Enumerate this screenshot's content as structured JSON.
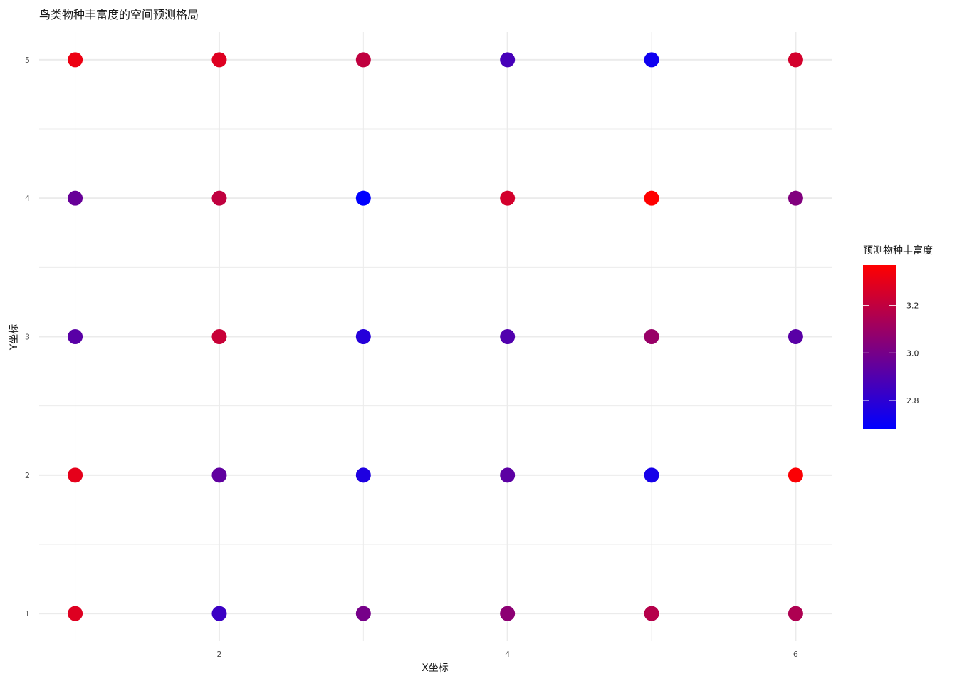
{
  "chart_data": {
    "type": "scatter",
    "title": "鸟类物种丰富度的空间预测格局",
    "xlabel": "X坐标",
    "ylabel": "Y坐标",
    "xlim": [
      0.75,
      6.25
    ],
    "ylim": [
      0.8,
      5.2
    ],
    "x_ticks": [
      2,
      4,
      6
    ],
    "y_ticks": [
      1,
      2,
      3,
      4,
      5
    ],
    "grid": true,
    "legend": {
      "title": "预测物种丰富度",
      "placement": "right",
      "min": 2.68,
      "max": 3.37,
      "ticks": [
        2.8,
        3.0,
        3.2
      ],
      "low_color": "#0000ff",
      "high_color": "#ff0000"
    },
    "points": [
      {
        "x": 1,
        "y": 5,
        "value": 3.32
      },
      {
        "x": 2,
        "y": 5,
        "value": 3.28
      },
      {
        "x": 3,
        "y": 5,
        "value": 3.2
      },
      {
        "x": 4,
        "y": 5,
        "value": 2.87
      },
      {
        "x": 5,
        "y": 5,
        "value": 2.72
      },
      {
        "x": 6,
        "y": 5,
        "value": 3.25
      },
      {
        "x": 1,
        "y": 4,
        "value": 2.96
      },
      {
        "x": 2,
        "y": 4,
        "value": 3.2
      },
      {
        "x": 3,
        "y": 4,
        "value": 2.68
      },
      {
        "x": 4,
        "y": 4,
        "value": 3.25
      },
      {
        "x": 5,
        "y": 4,
        "value": 3.37
      },
      {
        "x": 6,
        "y": 4,
        "value": 3.03
      },
      {
        "x": 1,
        "y": 3,
        "value": 2.92
      },
      {
        "x": 2,
        "y": 3,
        "value": 3.22
      },
      {
        "x": 3,
        "y": 3,
        "value": 2.78
      },
      {
        "x": 4,
        "y": 3,
        "value": 2.9
      },
      {
        "x": 5,
        "y": 3,
        "value": 3.09
      },
      {
        "x": 6,
        "y": 3,
        "value": 2.92
      },
      {
        "x": 1,
        "y": 2,
        "value": 3.3
      },
      {
        "x": 2,
        "y": 2,
        "value": 2.94
      },
      {
        "x": 3,
        "y": 2,
        "value": 2.76
      },
      {
        "x": 4,
        "y": 2,
        "value": 2.93
      },
      {
        "x": 5,
        "y": 2,
        "value": 2.74
      },
      {
        "x": 6,
        "y": 2,
        "value": 3.36
      },
      {
        "x": 1,
        "y": 1,
        "value": 3.28
      },
      {
        "x": 2,
        "y": 1,
        "value": 2.84
      },
      {
        "x": 3,
        "y": 1,
        "value": 3.0
      },
      {
        "x": 4,
        "y": 1,
        "value": 3.06
      },
      {
        "x": 5,
        "y": 1,
        "value": 3.17
      },
      {
        "x": 6,
        "y": 1,
        "value": 3.15
      }
    ]
  }
}
